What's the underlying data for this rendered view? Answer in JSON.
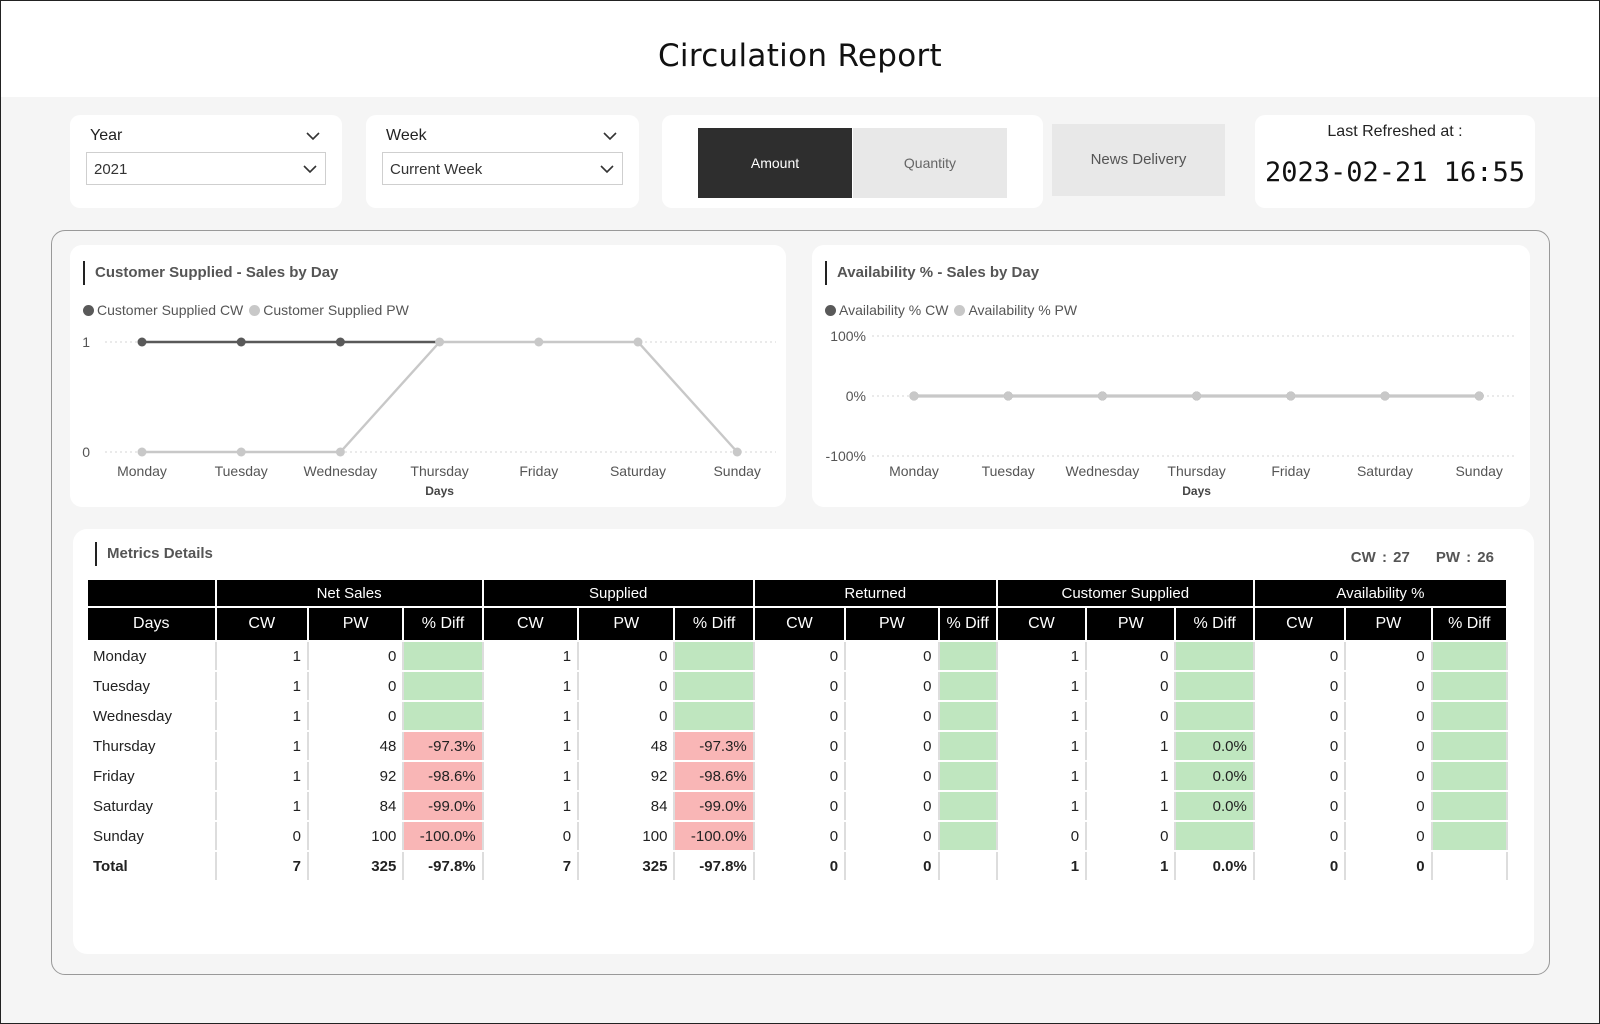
{
  "header": {
    "title": "Circulation Report"
  },
  "filters": {
    "year": {
      "label": "Year",
      "value": "2021"
    },
    "week": {
      "label": "Week",
      "value": "Current Week"
    }
  },
  "toggle": {
    "amount_label": "Amount",
    "quantity_label": "Quantity",
    "active": "Amount"
  },
  "news_delivery_label": "News Delivery",
  "refresh": {
    "label": "Last Refreshed at :",
    "value": "2023-02-21 16:55"
  },
  "colors": {
    "cw": "#595959",
    "pw": "#c8c8c8",
    "diff_positive": "#bfe6bf",
    "diff_negative": "#f9b6b6",
    "toggle_active": "#2e2e2e"
  },
  "chart_data": [
    {
      "type": "line",
      "title": "Customer Supplied - Sales by Day",
      "xlabel": "Days",
      "ylabel": "",
      "categories": [
        "Monday",
        "Tuesday",
        "Wednesday",
        "Thursday",
        "Friday",
        "Saturday",
        "Sunday"
      ],
      "y_ticks": [
        "1",
        "0"
      ],
      "ylim": [
        0,
        1
      ],
      "grid": true,
      "legend_position": "top-left",
      "series": [
        {
          "name": "Customer Supplied CW",
          "color": "#595959",
          "values": [
            1,
            1,
            1,
            1,
            1,
            1,
            0
          ]
        },
        {
          "name": "Customer Supplied PW",
          "color": "#c8c8c8",
          "values": [
            0,
            0,
            0,
            1,
            1,
            1,
            0
          ]
        }
      ]
    },
    {
      "type": "line",
      "title": "Availability % - Sales by Day",
      "xlabel": "Days",
      "ylabel": "",
      "categories": [
        "Monday",
        "Tuesday",
        "Wednesday",
        "Thursday",
        "Friday",
        "Saturday",
        "Sunday"
      ],
      "y_ticks": [
        "100%",
        "0%",
        "-100%"
      ],
      "ylim": [
        -100,
        100
      ],
      "grid": true,
      "legend_position": "top-left",
      "series": [
        {
          "name": "Availability % CW",
          "color": "#595959",
          "values": [
            0,
            0,
            0,
            0,
            0,
            0,
            0
          ]
        },
        {
          "name": "Availability % PW",
          "color": "#c8c8c8",
          "values": [
            0,
            0,
            0,
            0,
            0,
            0,
            0
          ]
        }
      ]
    }
  ],
  "metrics": {
    "title": "Metrics Details",
    "cw_summary": "CW : 27",
    "pw_summary": "PW : 26",
    "groups": [
      "Net Sales",
      "Supplied",
      "Returned",
      "Customer Supplied",
      "Availability %"
    ],
    "sub_headers": [
      "Days",
      "CW",
      "PW",
      "% Diff",
      "CW",
      "PW",
      "% Diff",
      "CW",
      "PW",
      "% Diff",
      "CW",
      "PW",
      "% Diff",
      "CW",
      "PW",
      "% Diff"
    ],
    "rows": [
      [
        "Monday",
        "1",
        "0",
        "",
        "1",
        "0",
        "",
        "0",
        "0",
        "",
        "1",
        "0",
        "",
        "0",
        "0",
        ""
      ],
      [
        "Tuesday",
        "1",
        "0",
        "",
        "1",
        "0",
        "",
        "0",
        "0",
        "",
        "1",
        "0",
        "",
        "0",
        "0",
        ""
      ],
      [
        "Wednesday",
        "1",
        "0",
        "",
        "1",
        "0",
        "",
        "0",
        "0",
        "",
        "1",
        "0",
        "",
        "0",
        "0",
        ""
      ],
      [
        "Thursday",
        "1",
        "48",
        "-97.3%",
        "1",
        "48",
        "-97.3%",
        "0",
        "0",
        "",
        "1",
        "1",
        "0.0%",
        "0",
        "0",
        ""
      ],
      [
        "Friday",
        "1",
        "92",
        "-98.6%",
        "1",
        "92",
        "-98.6%",
        "0",
        "0",
        "",
        "1",
        "1",
        "0.0%",
        "0",
        "0",
        ""
      ],
      [
        "Saturday",
        "1",
        "84",
        "-99.0%",
        "1",
        "84",
        "-99.0%",
        "0",
        "0",
        "",
        "1",
        "1",
        "0.0%",
        "0",
        "0",
        ""
      ],
      [
        "Sunday",
        "0",
        "100",
        "-100.0%",
        "0",
        "100",
        "-100.0%",
        "0",
        "0",
        "",
        "0",
        "0",
        "",
        "0",
        "0",
        ""
      ]
    ],
    "row_status": [
      [
        "green",
        "green",
        "green",
        "green",
        "green"
      ],
      [
        "green",
        "green",
        "green",
        "green",
        "green"
      ],
      [
        "green",
        "green",
        "green",
        "green",
        "green"
      ],
      [
        "red",
        "red",
        "green",
        "green",
        "green"
      ],
      [
        "red",
        "red",
        "green",
        "green",
        "green"
      ],
      [
        "red",
        "red",
        "green",
        "green",
        "green"
      ],
      [
        "red",
        "red",
        "green",
        "green",
        "green"
      ]
    ],
    "total": [
      "Total",
      "7",
      "325",
      "-97.8%",
      "7",
      "325",
      "-97.8%",
      "0",
      "0",
      "",
      "1",
      "1",
      "0.0%",
      "0",
      "0",
      ""
    ]
  }
}
